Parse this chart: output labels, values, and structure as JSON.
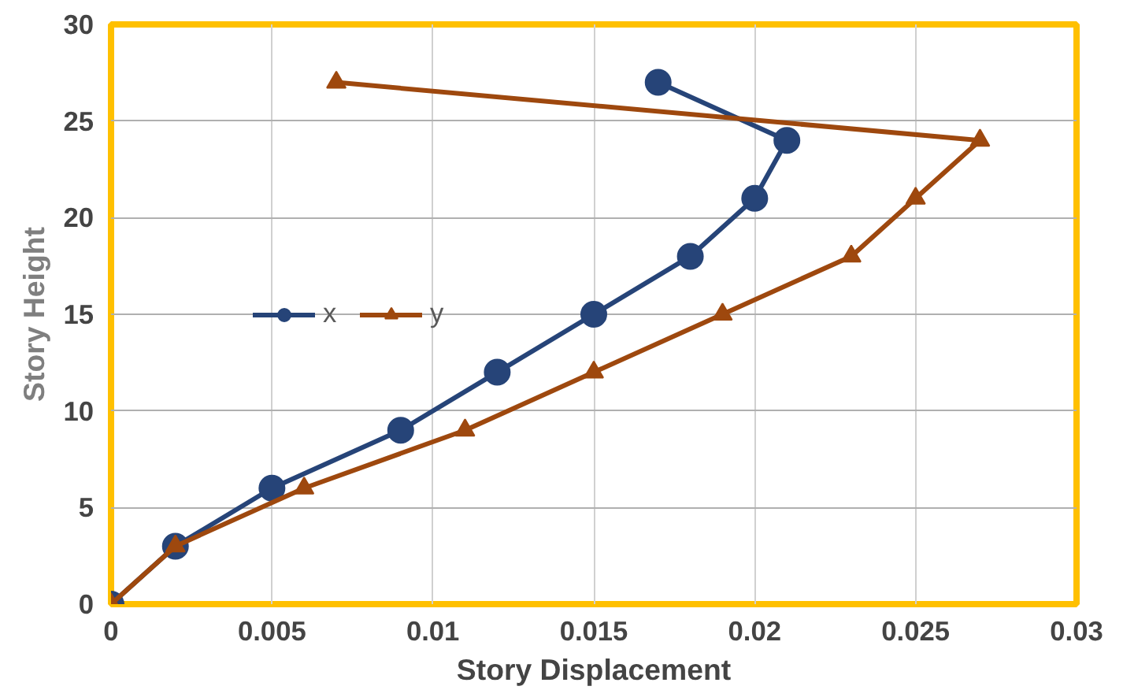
{
  "chart_data": {
    "type": "line",
    "xlabel": "Story Displacement",
    "ylabel": "Story Height",
    "xlim": [
      0,
      0.03
    ],
    "xticks": [
      0,
      0.005,
      0.01,
      0.015,
      0.02,
      0.025,
      0.03
    ],
    "ylim": [
      0,
      30
    ],
    "yticks": [
      0,
      5,
      10,
      15,
      20,
      25,
      30
    ],
    "grid": true,
    "legend": "left",
    "series": [
      {
        "name": "x",
        "color": "#264478",
        "marker": "circle",
        "x": [
          0,
          0.002,
          0.005,
          0.009,
          0.012,
          0.015,
          0.018,
          0.02,
          0.021,
          0.017
        ],
        "values": [
          0,
          3,
          6,
          9,
          12,
          15,
          18,
          21,
          24,
          27
        ]
      },
      {
        "name": "y",
        "color": "#9e480e",
        "marker": "triangle",
        "x": [
          0,
          0.002,
          0.006,
          0.011,
          0.015,
          0.019,
          0.023,
          0.025,
          0.027,
          0.007
        ],
        "values": [
          0,
          3,
          6,
          9,
          12,
          15,
          18,
          21,
          24,
          27
        ]
      }
    ]
  }
}
